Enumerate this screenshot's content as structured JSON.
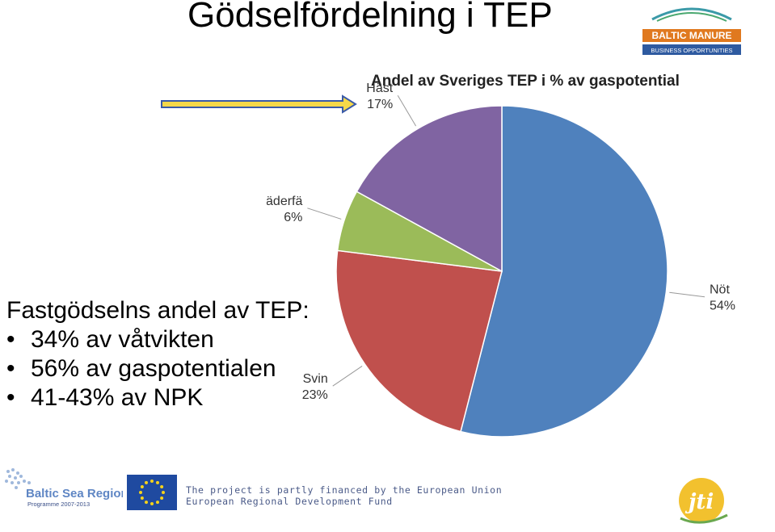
{
  "slide": {
    "title": "Gödselfördelning i TEP",
    "text_heading": "Fastgödselns andel av TEP:",
    "bullets": [
      "34% av våtvikten",
      "56% av gaspotentialen",
      "41-43% av NPK"
    ],
    "bullet_char": "•"
  },
  "logos": {
    "baltic_manure": {
      "name": "BALTIC MANURE",
      "tagline": "BUSINESS OPPORTUNITIES"
    },
    "baltic_sea_region": {
      "name": "Baltic Sea Region",
      "tagline": "Programme 2007-2013"
    },
    "jti": {
      "name": "jti"
    }
  },
  "footer": {
    "line1": "The project is partly financed by the European Union",
    "line2": "European  Regional Development Fund"
  },
  "colors": {
    "arrow_fill": "#f5d84a",
    "arrow_stroke": "#3a5aa8",
    "eu_blue": "#1f4aa0",
    "eu_star": "#f6d21b"
  },
  "chart_data": {
    "type": "pie",
    "title": "Andel av Sveriges TEP i % av gaspotential",
    "series": [
      {
        "labels": [
          "Nöt",
          "Svin",
          "Fjäderfä",
          "Häst"
        ],
        "values": [
          54,
          23,
          6,
          17
        ],
        "display": [
          "54%",
          "23%",
          "6%",
          "17%"
        ],
        "colors": [
          "#4f81bd",
          "#c0504d",
          "#9bbb59",
          "#8064a2"
        ]
      }
    ],
    "legend": "none",
    "start_angle_deg": 0,
    "direction": "clockwise"
  }
}
